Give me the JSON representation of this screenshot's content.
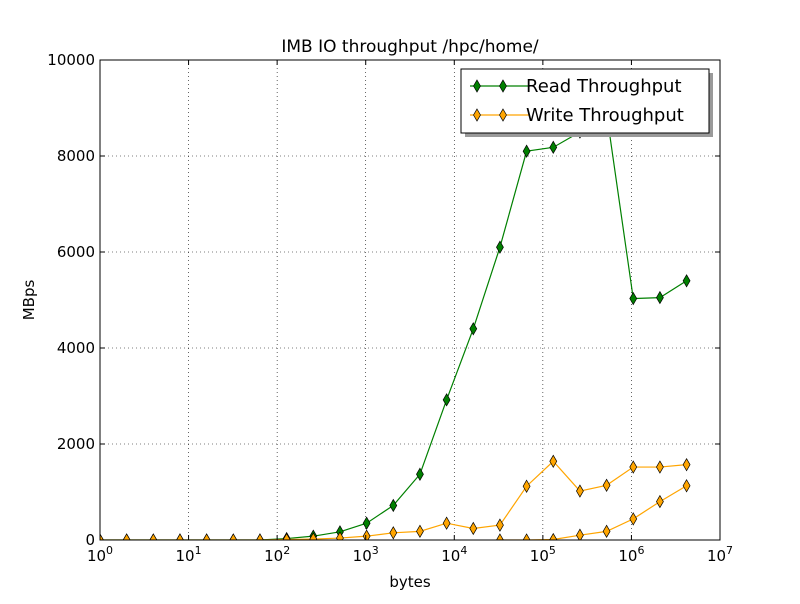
{
  "chart_data": {
    "type": "line",
    "title": "IMB IO throughput /hpc/home/",
    "xlabel": "bytes",
    "ylabel": "MBps",
    "xscale": "log",
    "xlim": [
      1,
      10000000
    ],
    "ylim": [
      0,
      10000
    ],
    "grid": true,
    "legend_position": "top-right",
    "x_ticks": [
      {
        "value": 1,
        "base": "10",
        "exp": "0"
      },
      {
        "value": 10,
        "base": "10",
        "exp": "1"
      },
      {
        "value": 100,
        "base": "10",
        "exp": "2"
      },
      {
        "value": 1000,
        "base": "10",
        "exp": "3"
      },
      {
        "value": 10000,
        "base": "10",
        "exp": "4"
      },
      {
        "value": 100000,
        "base": "10",
        "exp": "5"
      },
      {
        "value": 1000000,
        "base": "10",
        "exp": "6"
      },
      {
        "value": 10000000,
        "base": "10",
        "exp": "7"
      }
    ],
    "y_ticks": [
      {
        "value": 0,
        "label": "0"
      },
      {
        "value": 2000,
        "label": "2000"
      },
      {
        "value": 4000,
        "label": "4000"
      },
      {
        "value": 6000,
        "label": "6000"
      },
      {
        "value": 8000,
        "label": "8000"
      },
      {
        "value": 10000,
        "label": "10000"
      }
    ],
    "x": [
      1,
      2,
      4,
      8,
      16,
      32,
      64,
      128,
      256,
      512,
      1024,
      2048,
      4096,
      8192,
      16384,
      32768,
      65536,
      131072,
      262144,
      524288,
      1048576,
      2097152,
      4194304
    ],
    "series": [
      {
        "name": "Read Throughput",
        "line_color": "#008000",
        "marker_color": "#008000",
        "values": [
          0,
          0,
          0,
          0,
          0,
          0,
          0,
          30,
          80,
          170,
          350,
          720,
          1370,
          2920,
          4400,
          6100,
          8100,
          8180,
          8500,
          8900,
          5030,
          5050,
          5400
        ]
      },
      {
        "name": "Write Throughput",
        "line_color": "#ffa500",
        "marker_color": "#ffa500",
        "values": [
          0,
          0,
          0,
          0,
          0,
          0,
          0,
          10,
          20,
          40,
          80,
          150,
          180,
          350,
          240,
          310,
          1120,
          1640,
          1020,
          1140,
          1520,
          1520,
          1570
        ]
      },
      {
        "name": "Write Throughput",
        "line_color": "#ffa500",
        "marker_color": "#ffa500",
        "values": [
          null,
          null,
          null,
          null,
          null,
          null,
          null,
          null,
          null,
          null,
          null,
          null,
          null,
          null,
          null,
          0,
          0,
          10,
          100,
          180,
          440,
          800,
          1130
        ]
      }
    ]
  }
}
